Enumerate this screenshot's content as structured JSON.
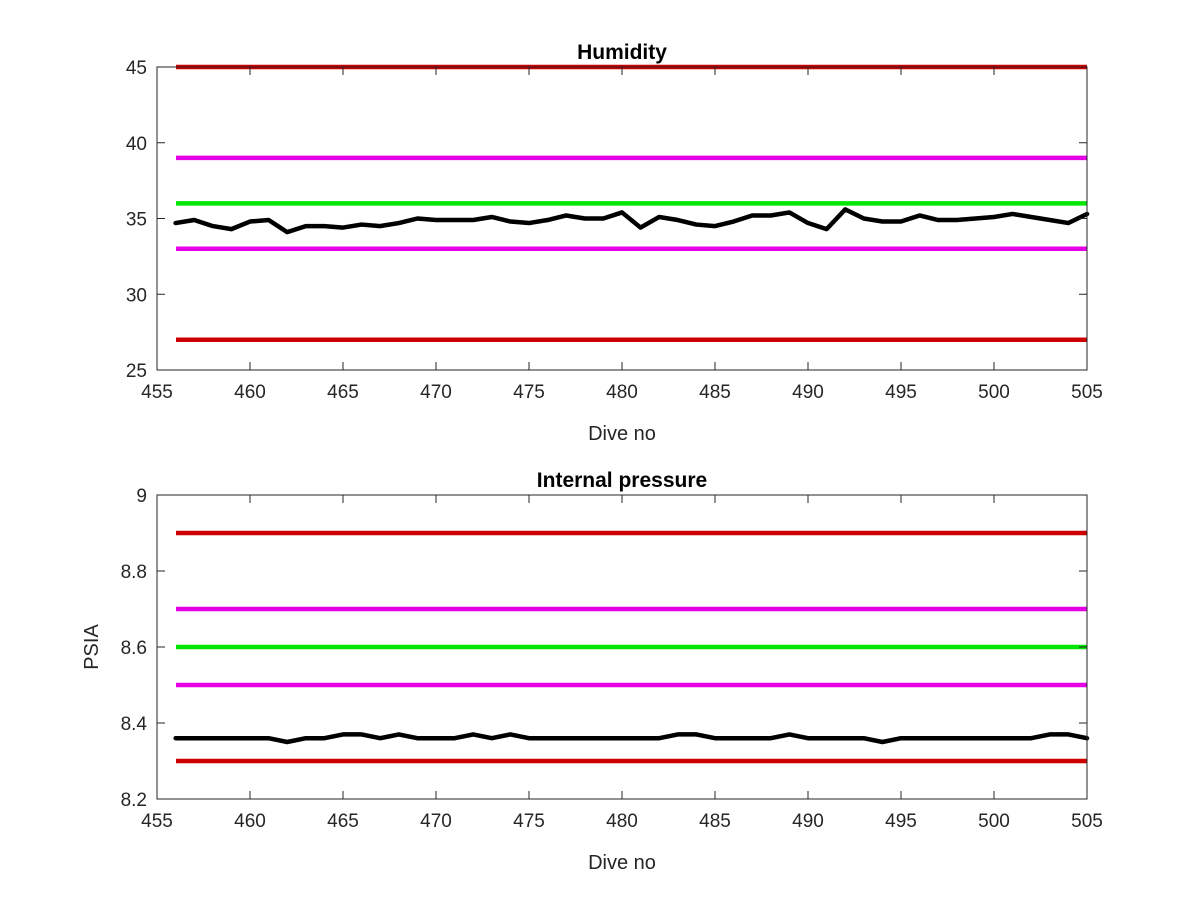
{
  "chart_data": [
    {
      "type": "line",
      "title": "Humidity",
      "xlabel": "Dive no",
      "ylabel": "",
      "xlim": [
        455,
        505
      ],
      "ylim": [
        25,
        45
      ],
      "xticks": [
        455,
        460,
        465,
        470,
        475,
        480,
        485,
        490,
        495,
        500,
        505
      ],
      "yticks": [
        25,
        30,
        35,
        40,
        45
      ],
      "grid": false,
      "thresholds": [
        {
          "value": 45,
          "color": "#cc0000"
        },
        {
          "value": 39,
          "color": "#e600e6"
        },
        {
          "value": 36,
          "color": "#00e600"
        },
        {
          "value": 33,
          "color": "#e600e6"
        },
        {
          "value": 27,
          "color": "#cc0000"
        }
      ],
      "series": [
        {
          "color": "#000000",
          "x": [
            456,
            457,
            458,
            459,
            460,
            461,
            462,
            463,
            464,
            465,
            466,
            467,
            468,
            469,
            470,
            471,
            472,
            473,
            474,
            475,
            476,
            477,
            478,
            479,
            480,
            481,
            482,
            483,
            484,
            485,
            486,
            487,
            488,
            489,
            490,
            491,
            492,
            493,
            494,
            495,
            496,
            497,
            498,
            499,
            500,
            501,
            502,
            503,
            504,
            505
          ],
          "y": [
            34.7,
            34.9,
            34.5,
            34.3,
            34.8,
            34.9,
            34.1,
            34.5,
            34.5,
            34.4,
            34.6,
            34.5,
            34.7,
            35.0,
            34.9,
            34.9,
            34.9,
            35.1,
            34.8,
            34.7,
            34.9,
            35.2,
            35.0,
            35.0,
            35.4,
            34.4,
            35.1,
            34.9,
            34.6,
            34.5,
            34.8,
            35.2,
            35.2,
            35.4,
            34.7,
            34.3,
            35.6,
            35.0,
            34.8,
            34.8,
            35.2,
            34.9,
            34.9,
            35.0,
            35.1,
            35.3,
            35.1,
            34.9,
            34.7,
            35.3
          ]
        }
      ]
    },
    {
      "type": "line",
      "title": "Internal pressure",
      "xlabel": "Dive no",
      "ylabel": "PSIA",
      "xlim": [
        455,
        505
      ],
      "ylim": [
        8.2,
        9
      ],
      "xticks": [
        455,
        460,
        465,
        470,
        475,
        480,
        485,
        490,
        495,
        500,
        505
      ],
      "yticks": [
        8.2,
        8.4,
        8.6,
        8.8,
        9
      ],
      "ytick_labels": [
        "8.2",
        "8.4",
        "8.6",
        "8.8",
        "9"
      ],
      "grid": false,
      "thresholds": [
        {
          "value": 8.9,
          "color": "#cc0000"
        },
        {
          "value": 8.7,
          "color": "#e600e6"
        },
        {
          "value": 8.6,
          "color": "#00e600"
        },
        {
          "value": 8.5,
          "color": "#e600e6"
        },
        {
          "value": 8.3,
          "color": "#cc0000"
        }
      ],
      "series": [
        {
          "color": "#000000",
          "x": [
            456,
            457,
            458,
            459,
            460,
            461,
            462,
            463,
            464,
            465,
            466,
            467,
            468,
            469,
            470,
            471,
            472,
            473,
            474,
            475,
            476,
            477,
            478,
            479,
            480,
            481,
            482,
            483,
            484,
            485,
            486,
            487,
            488,
            489,
            490,
            491,
            492,
            493,
            494,
            495,
            496,
            497,
            498,
            499,
            500,
            501,
            502,
            503,
            504,
            505
          ],
          "y": [
            8.36,
            8.36,
            8.36,
            8.36,
            8.36,
            8.36,
            8.35,
            8.36,
            8.36,
            8.37,
            8.37,
            8.36,
            8.37,
            8.36,
            8.36,
            8.36,
            8.37,
            8.36,
            8.37,
            8.36,
            8.36,
            8.36,
            8.36,
            8.36,
            8.36,
            8.36,
            8.36,
            8.37,
            8.37,
            8.36,
            8.36,
            8.36,
            8.36,
            8.37,
            8.36,
            8.36,
            8.36,
            8.36,
            8.35,
            8.36,
            8.36,
            8.36,
            8.36,
            8.36,
            8.36,
            8.36,
            8.36,
            8.37,
            8.37,
            8.36
          ]
        }
      ]
    }
  ]
}
